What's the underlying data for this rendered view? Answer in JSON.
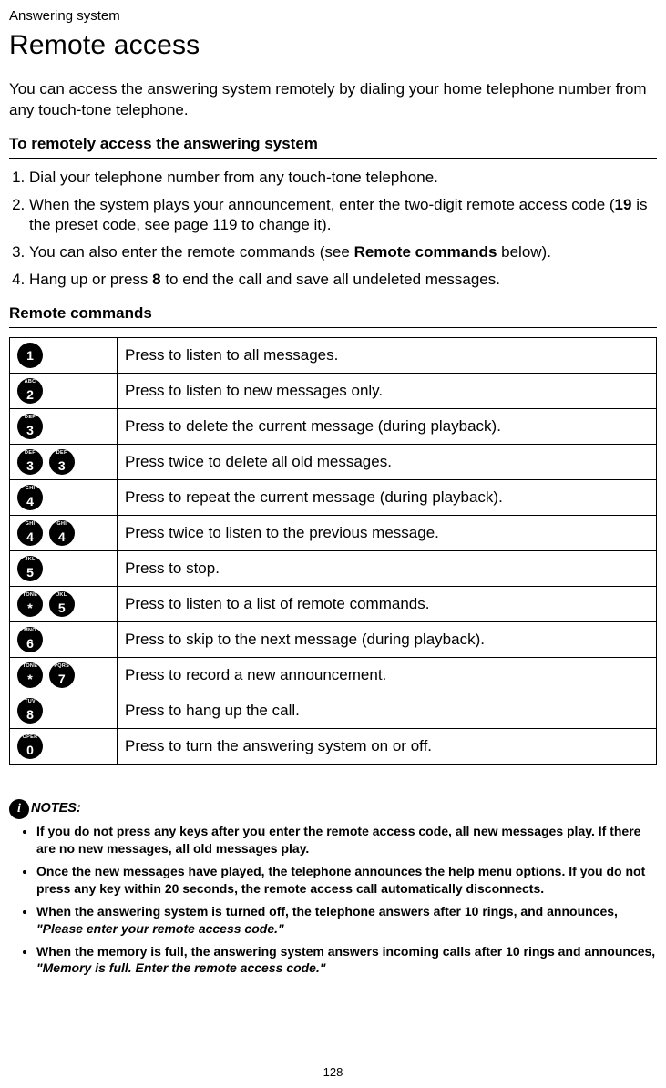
{
  "header": {
    "category": "Answering system",
    "title": "Remote access"
  },
  "intro": "You can access the answering system remotely by dialing your home telephone number from any touch-tone telephone.",
  "section1_title": "To remotely access the answering system",
  "steps": {
    "s1": "Dial your telephone number from any touch-tone telephone.",
    "s2a": "When the system plays your announcement, enter the two-digit remote access code (",
    "s2b": "19",
    "s2c": " is the preset code, see page 119 to change it).",
    "s3a": "You can also enter the remote commands (see ",
    "s3b": "Remote commands",
    "s3c": " below).",
    "s4a": "Hang up or press ",
    "s4b": "8",
    "s4c": " to end the call and save all undeleted messages."
  },
  "section2_title": "Remote commands",
  "keys": {
    "k1_sup": "",
    "k1_num": "1",
    "k2_sup": "ABC",
    "k2_num": "2",
    "k3_sup": "DEF",
    "k3_num": "3",
    "k4_sup": "GHI",
    "k4_num": "4",
    "k5_sup": "JKL",
    "k5_num": "5",
    "k6_sup": "MNO",
    "k6_num": "6",
    "k7_sup": "PQRS",
    "k7_num": "7",
    "k8_sup": "TUV",
    "k8_num": "8",
    "k0_sup": "OPER",
    "k0_num": "0",
    "kstar_sup": "TONE",
    "kstar_num": "*"
  },
  "cmds": {
    "c1": "Press to listen to all messages.",
    "c2": "Press to listen to new messages only.",
    "c3": "Press to delete the current message (during playback).",
    "c4": "Press twice to delete all old messages.",
    "c5": "Press to repeat the current message (during playback).",
    "c6": "Press twice to listen to the previous message.",
    "c7": "Press to stop.",
    "c8": "Press to listen to a list of remote commands.",
    "c9": "Press to skip to the next message (during playback).",
    "c10": "Press to record a new announcement.",
    "c11": "Press to hang up the call.",
    "c12": "Press to turn the answering system on or off."
  },
  "notes": {
    "label": "NOTES:",
    "n1": "If you do not press any keys after you enter the remote access code, all new messages play. If there are no new messages, all old messages play.",
    "n2": "Once the new messages have played, the telephone announces the help menu options. If you do not press any key within 20 seconds, the remote access call automatically disconnects.",
    "n3a": "When the answering system is turned off, the telephone answers after 10 rings, and announces, ",
    "n3b": "\"Please enter your remote access code.\"",
    "n4a": "When the memory is full, the answering system answers incoming calls after 10 rings and announces, ",
    "n4b": "\"Memory is full. Enter the remote access code.\""
  },
  "pagenum": "128"
}
